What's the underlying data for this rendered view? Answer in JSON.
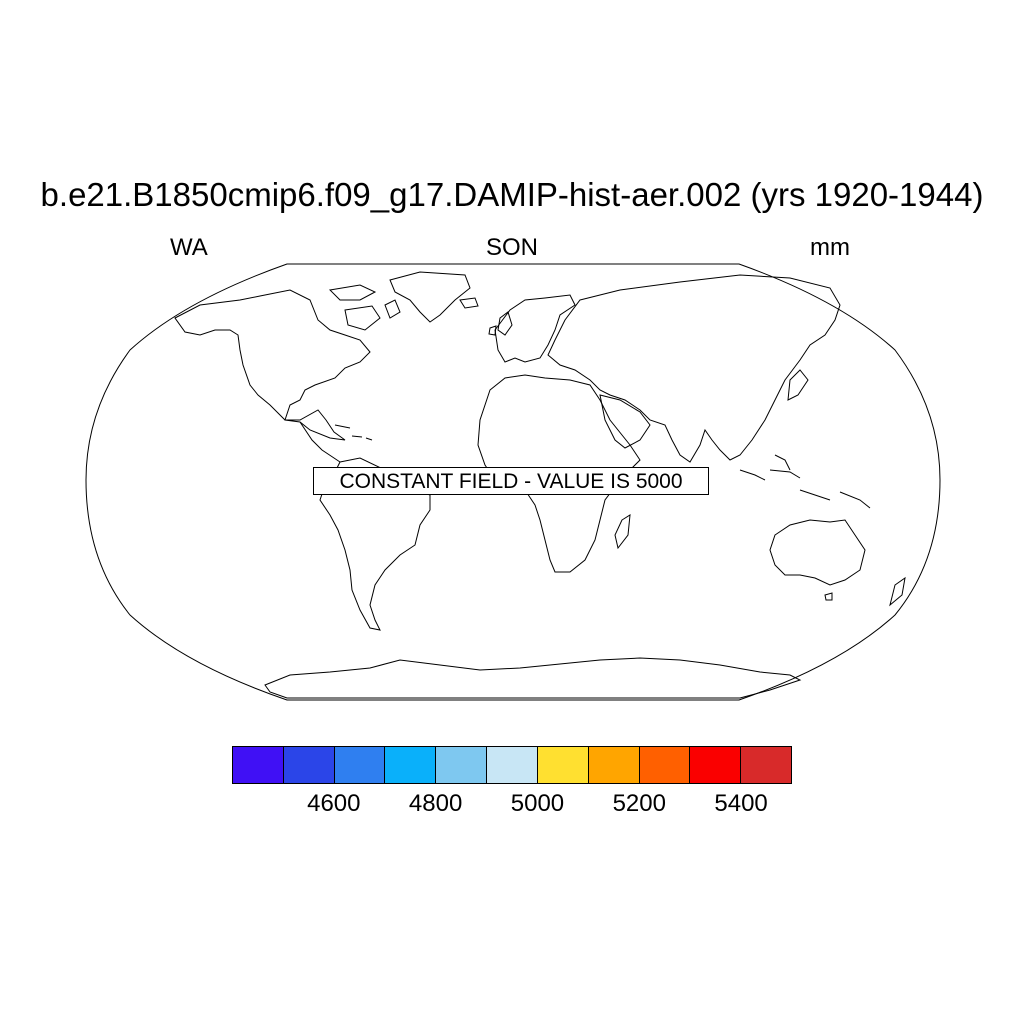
{
  "title": "b.e21.B1850cmip6.f09_g17.DAMIP-hist-aer.002 (yrs 1920-1944)",
  "subtitle_left": "WA",
  "subtitle_center": "SON",
  "subtitle_right": "mm",
  "map_projection": "Robinson",
  "constant_field_label": "CONSTANT FIELD - VALUE IS 5000",
  "colorbar": {
    "colors": [
      "#4010f5",
      "#2b45e8",
      "#2f7ff0",
      "#0ab0fa",
      "#7ec8f0",
      "#c8e6f5",
      "#ffe030",
      "#ffa500",
      "#ff6000",
      "#fa0000",
      "#d82a2a"
    ],
    "tick_labels": [
      "4600",
      "4800",
      "5000",
      "5200",
      "5400"
    ]
  }
}
